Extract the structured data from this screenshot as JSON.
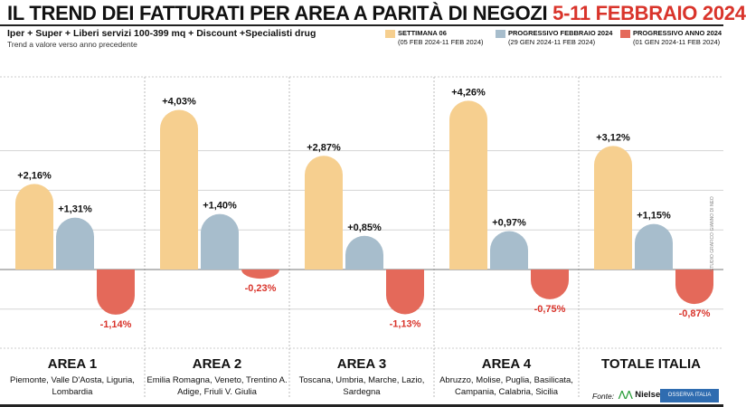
{
  "header": {
    "title": "IL TREND DEI FATTURATI PER AREA A PARITÀ DI NEGOZI",
    "title_period": "5-11 FEBBRAIO 2024",
    "subtitle": "Iper + Super + Liberi servizi 100-399 mq + Discount +Specialisti drug",
    "note": "Trend a valore verso anno precedente"
  },
  "colors": {
    "accent": "#d9342b",
    "series1": "#f6cf8f",
    "series2": "#a7bdcc",
    "series3": "#e4695a"
  },
  "chart_data": {
    "type": "bar",
    "title": "IL TREND DEI FATTURATI PER AREA A PARITÀ DI NEGOZI 5-11 FEBBRAIO 2024",
    "ylabel": "Trend a valore verso anno precedente (%)",
    "ylim": [
      -2,
      4.4
    ],
    "grid": true,
    "legend_position": "top-right",
    "categories": [
      "AREA 1",
      "AREA 2",
      "AREA 3",
      "AREA 4",
      "TOTALE ITALIA"
    ],
    "category_regions": [
      "Piemonte, Valle D'Aosta, Liguria, Lombardia",
      "Emilia Romagna, Veneto, Trentino A. Adige, Friuli V. Giulia",
      "Toscana, Umbria, Marche, Lazio, Sardegna",
      "Abruzzo, Molise, Puglia, Basilicata, Campania, Calabria, Sicilia",
      ""
    ],
    "series": [
      {
        "name": "SETTIMANA 06",
        "period": "(05 FEB 2024-11 FEB 2024)",
        "values": [
          2.16,
          4.03,
          2.87,
          4.26,
          3.12
        ],
        "labels": [
          "+2,16%",
          "+4,03%",
          "+2,87%",
          "+4,26%",
          "+3,12%"
        ]
      },
      {
        "name": "PROGRESSIVO FEBBRAIO 2024",
        "period": "(29 GEN 2024-11 FEB 2024)",
        "values": [
          1.31,
          1.4,
          0.85,
          0.97,
          1.15
        ],
        "labels": [
          "+1,31%",
          "+1,40%",
          "+0,85%",
          "+0,97%",
          "+1,15%"
        ]
      },
      {
        "name": "PROGRESSIVO ANNO 2024",
        "period": "(01 GEN 2024-11 FEB 2024)",
        "values": [
          -1.14,
          -0.23,
          -1.13,
          -0.75,
          -0.87
        ],
        "labels": [
          "-1,14%",
          "-0,23%",
          "-1,13%",
          "-0,75%",
          "-0,87%"
        ]
      }
    ]
  },
  "footer": {
    "source_label": "Fonte:",
    "source": "NielsenIQ",
    "partner": "OSSERVA ITALIA",
    "credit": "STUDIO GRAFICO GIANNO DI NEO"
  }
}
